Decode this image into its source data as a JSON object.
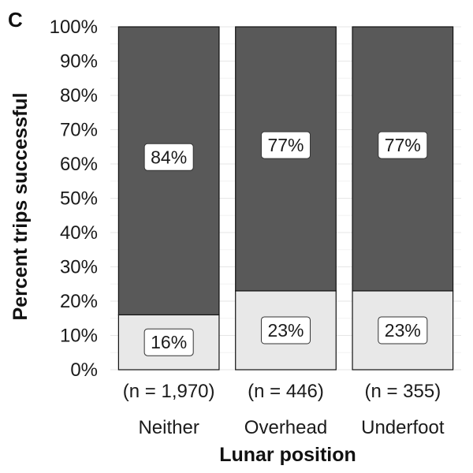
{
  "panel_label": "C",
  "chart_data": {
    "type": "bar",
    "stacked": true,
    "xlabel": "Lunar position",
    "ylabel": "Percent trips successful",
    "ylim": [
      0,
      100
    ],
    "yticks": [
      "0%",
      "10%",
      "20%",
      "30%",
      "40%",
      "50%",
      "60%",
      "70%",
      "80%",
      "90%",
      "100%"
    ],
    "categories": [
      "Neither",
      "Overhead",
      "Underfoot"
    ],
    "sample_sizes": [
      "(n = 1,970)",
      "(n = 446)",
      "(n = 355)"
    ],
    "series": [
      {
        "values": [
          16,
          23,
          23
        ],
        "labels": [
          "16%",
          "23%",
          "23%"
        ],
        "color": "#e8e8e8"
      },
      {
        "values": [
          84,
          77,
          77
        ],
        "labels": [
          "84%",
          "77%",
          "77%"
        ],
        "color": "#595959"
      }
    ],
    "grid": true,
    "legend": "none"
  }
}
